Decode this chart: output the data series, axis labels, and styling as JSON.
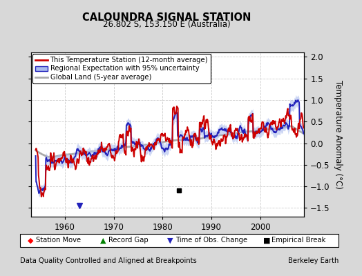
{
  "title": "CALOUNDRA SIGNAL STATION",
  "subtitle": "26.802 S, 153.150 E (Australia)",
  "ylabel": "Temperature Anomaly (°C)",
  "ylim": [
    -1.7,
    2.1
  ],
  "yticks": [
    -1.5,
    -1.0,
    -0.5,
    0.0,
    0.5,
    1.0,
    1.5,
    2.0
  ],
  "xlim": [
    1953,
    2009
  ],
  "xticks": [
    1960,
    1970,
    1980,
    1990,
    2000
  ],
  "bg_color": "#d8d8d8",
  "plot_bg_color": "#ffffff",
  "station_color": "#cc0000",
  "regional_color": "#2222bb",
  "regional_fill_color": "#aabbee",
  "global_color": "#aaaaaa",
  "legend_labels": [
    "This Temperature Station (12-month average)",
    "Regional Expectation with 95% uncertainty",
    "Global Land (5-year average)"
  ],
  "footer_left": "Data Quality Controlled and Aligned at Breakpoints",
  "footer_right": "Berkeley Earth",
  "seed": 42
}
